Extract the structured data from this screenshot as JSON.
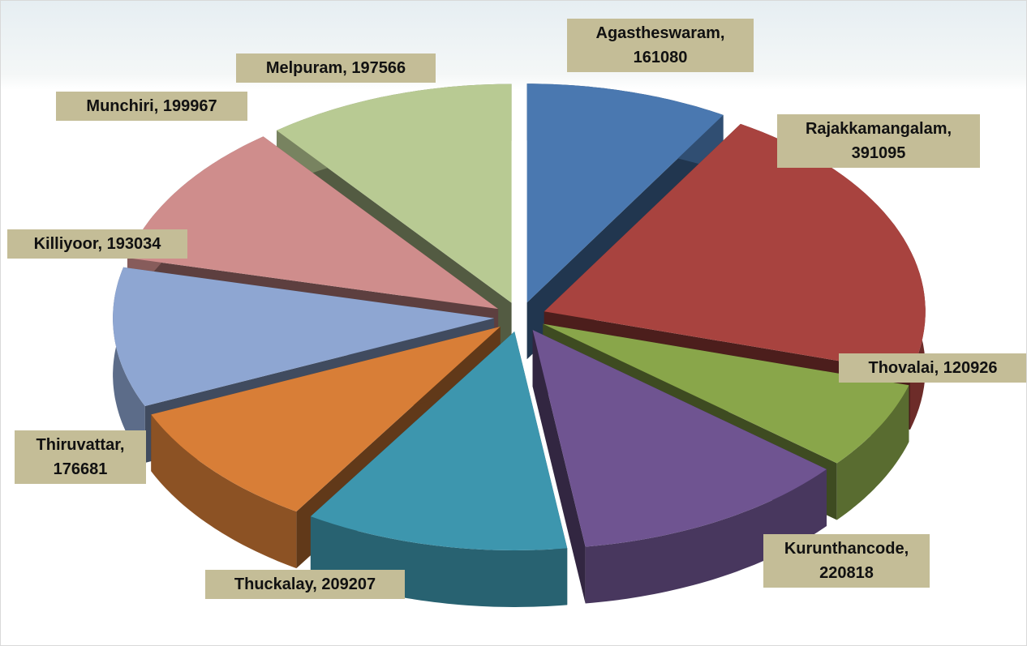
{
  "chart_data": {
    "type": "pie3d",
    "values": [
      161080,
      391095,
      120926,
      220818,
      209207,
      176681,
      193034,
      199967,
      197566
    ],
    "value_labels": [
      "Agastheswaram, 161080",
      "Rajakkamangalam, 391095",
      "Thovalai, 120926",
      "Kurunthancode, 220818",
      "Thuckalay, 209207",
      "Thiruvattar, 176681",
      "Killiyoor, 193034",
      "Munchiri, 199967",
      "Melpuram, 197566"
    ],
    "colors": [
      "#4a78b0",
      "#a8433f",
      "#89a64a",
      "#6f5491",
      "#3d96ae",
      "#d87e37",
      "#8ea6d2",
      "#cf8d8c",
      "#b8ca93"
    ]
  }
}
